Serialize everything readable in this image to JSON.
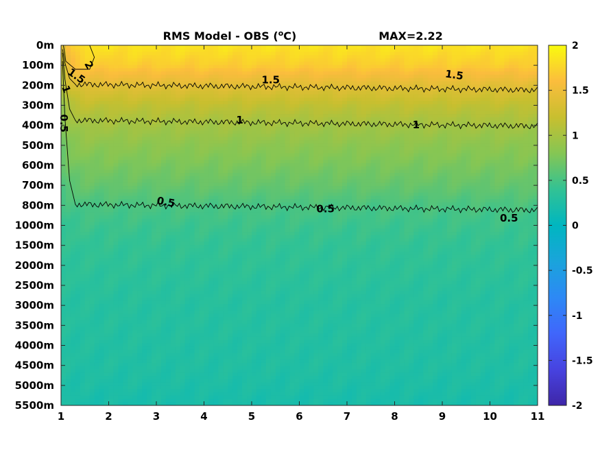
{
  "chart_data": {
    "type": "heatmap",
    "title": "RMS Model - OBS (",
    "title_unit": "o",
    "title_unit_suffix": "C)",
    "max_label": "MAX=2.22",
    "x": {
      "min": 1,
      "max": 11,
      "ticks": [
        "1",
        "2",
        "3",
        "4",
        "5",
        "6",
        "7",
        "8",
        "9",
        "10",
        "11"
      ]
    },
    "y": {
      "ticks": [
        "0m",
        "100m",
        "200m",
        "300m",
        "400m",
        "500m",
        "600m",
        "700m",
        "800m",
        "1000m",
        "1500m",
        "2000m",
        "2500m",
        "3000m",
        "3500m",
        "4000m",
        "4500m",
        "5000m",
        "5500m"
      ]
    },
    "colorbar": {
      "min": -2,
      "max": 2,
      "ticks": [
        "2",
        "1.5",
        "1",
        "0.5",
        "0",
        "-0.5",
        "-1",
        "-1.5",
        "-2"
      ],
      "colormap": "parula"
    },
    "depth_profile": [
      1.85,
      1.7,
      1.4,
      1.15,
      0.98,
      0.85,
      0.75,
      0.65,
      0.52,
      0.45,
      0.4,
      0.37,
      0.34,
      0.31,
      0.3,
      0.28,
      0.27,
      0.24,
      0.2
    ],
    "contours": [
      {
        "level": 2,
        "label": "2"
      },
      {
        "level": 1.5,
        "label": "1.5"
      },
      {
        "level": 1,
        "label": "1"
      },
      {
        "level": 0.5,
        "label": "0.5"
      }
    ],
    "contour_labels": [
      {
        "text": "2",
        "x": 1.58,
        "y": 1.0,
        "angle": 60
      },
      {
        "text": "1.5",
        "x": 1.32,
        "y": 1.55,
        "angle": 35
      },
      {
        "text": "1",
        "x": 1.1,
        "y": 2.2,
        "angle": 70
      },
      {
        "text": "0.5",
        "x": 1.05,
        "y": 3.9,
        "angle": 90
      },
      {
        "text": "1.5",
        "x": 5.4,
        "y": 1.75,
        "angle": 0
      },
      {
        "text": "1.5",
        "x": 9.25,
        "y": 1.5,
        "angle": 8
      },
      {
        "text": "1",
        "x": 4.75,
        "y": 3.75,
        "angle": 0
      },
      {
        "text": "1",
        "x": 8.45,
        "y": 4.0,
        "angle": 0
      },
      {
        "text": "0.5",
        "x": 3.2,
        "y": 7.85,
        "angle": 10
      },
      {
        "text": "0.5",
        "x": 6.55,
        "y": 8.2,
        "angle": 0
      },
      {
        "text": "0.5",
        "x": 10.4,
        "y": 8.65,
        "angle": 0
      }
    ]
  }
}
